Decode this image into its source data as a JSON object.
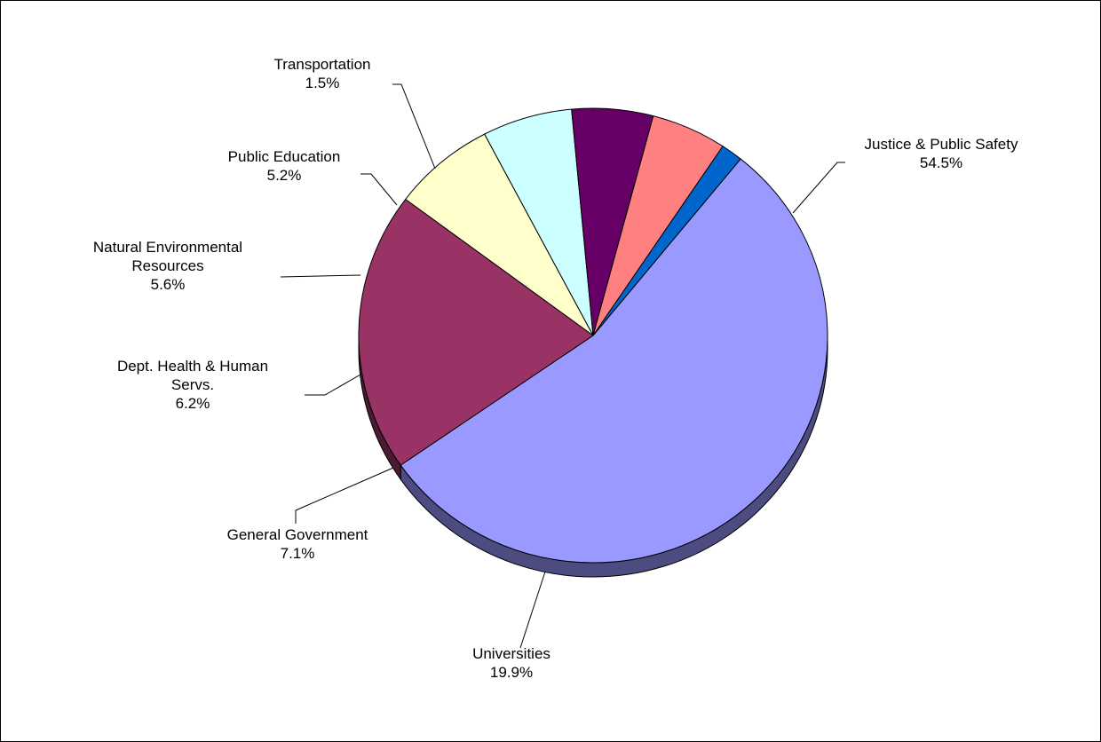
{
  "chart_data": {
    "type": "pie",
    "title": "",
    "style": "3d",
    "slices": [
      {
        "label_lines": [
          "Justice & Public Safety"
        ],
        "percent_label": "54.5%",
        "value": 54.5,
        "color": "#9999FF",
        "side_color": "#4C4C80"
      },
      {
        "label_lines": [
          "Universities"
        ],
        "percent_label": "19.9%",
        "value": 19.9,
        "color": "#993366",
        "side_color": "#4C1A33"
      },
      {
        "label_lines": [
          "General Government"
        ],
        "percent_label": "7.1%",
        "value": 7.1,
        "color": "#FFFFCC",
        "side_color": "#808066"
      },
      {
        "label_lines": [
          "Dept. Health & Human",
          "Servs."
        ],
        "percent_label": "6.2%",
        "value": 6.2,
        "color": "#CCFFFF",
        "side_color": "#668080"
      },
      {
        "label_lines": [
          "Natural Environmental",
          "Resources"
        ],
        "percent_label": "5.6%",
        "value": 5.6,
        "color": "#660066",
        "side_color": "#330033"
      },
      {
        "label_lines": [
          "Public Education"
        ],
        "percent_label": "5.2%",
        "value": 5.2,
        "color": "#FF8080",
        "side_color": "#804040"
      },
      {
        "label_lines": [
          "Transportation"
        ],
        "percent_label": "1.5%",
        "value": 1.5,
        "color": "#0066CC",
        "side_color": "#003366"
      }
    ]
  }
}
